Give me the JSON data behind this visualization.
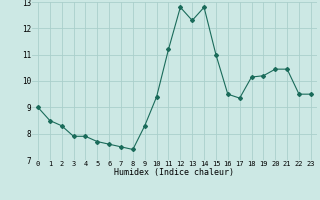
{
  "x": [
    0,
    1,
    2,
    3,
    4,
    5,
    6,
    7,
    8,
    9,
    10,
    11,
    12,
    13,
    14,
    15,
    16,
    17,
    18,
    19,
    20,
    21,
    22,
    23
  ],
  "y": [
    9.0,
    8.5,
    8.3,
    7.9,
    7.9,
    7.7,
    7.6,
    7.5,
    7.4,
    8.3,
    9.4,
    11.2,
    12.8,
    12.3,
    12.8,
    11.0,
    9.5,
    9.35,
    10.15,
    10.2,
    10.45,
    10.45,
    9.5,
    9.5
  ],
  "line_color": "#1a6b5a",
  "bg_color": "#cce8e4",
  "grid_color": "#aacfcb",
  "xlabel": "Humidex (Indice chaleur)",
  "ylim": [
    7,
    13
  ],
  "xlim": [
    -0.5,
    23.5
  ],
  "yticks": [
    7,
    8,
    9,
    10,
    11,
    12,
    13
  ],
  "xticks": [
    0,
    1,
    2,
    3,
    4,
    5,
    6,
    7,
    8,
    9,
    10,
    11,
    12,
    13,
    14,
    15,
    16,
    17,
    18,
    19,
    20,
    21,
    22,
    23
  ]
}
